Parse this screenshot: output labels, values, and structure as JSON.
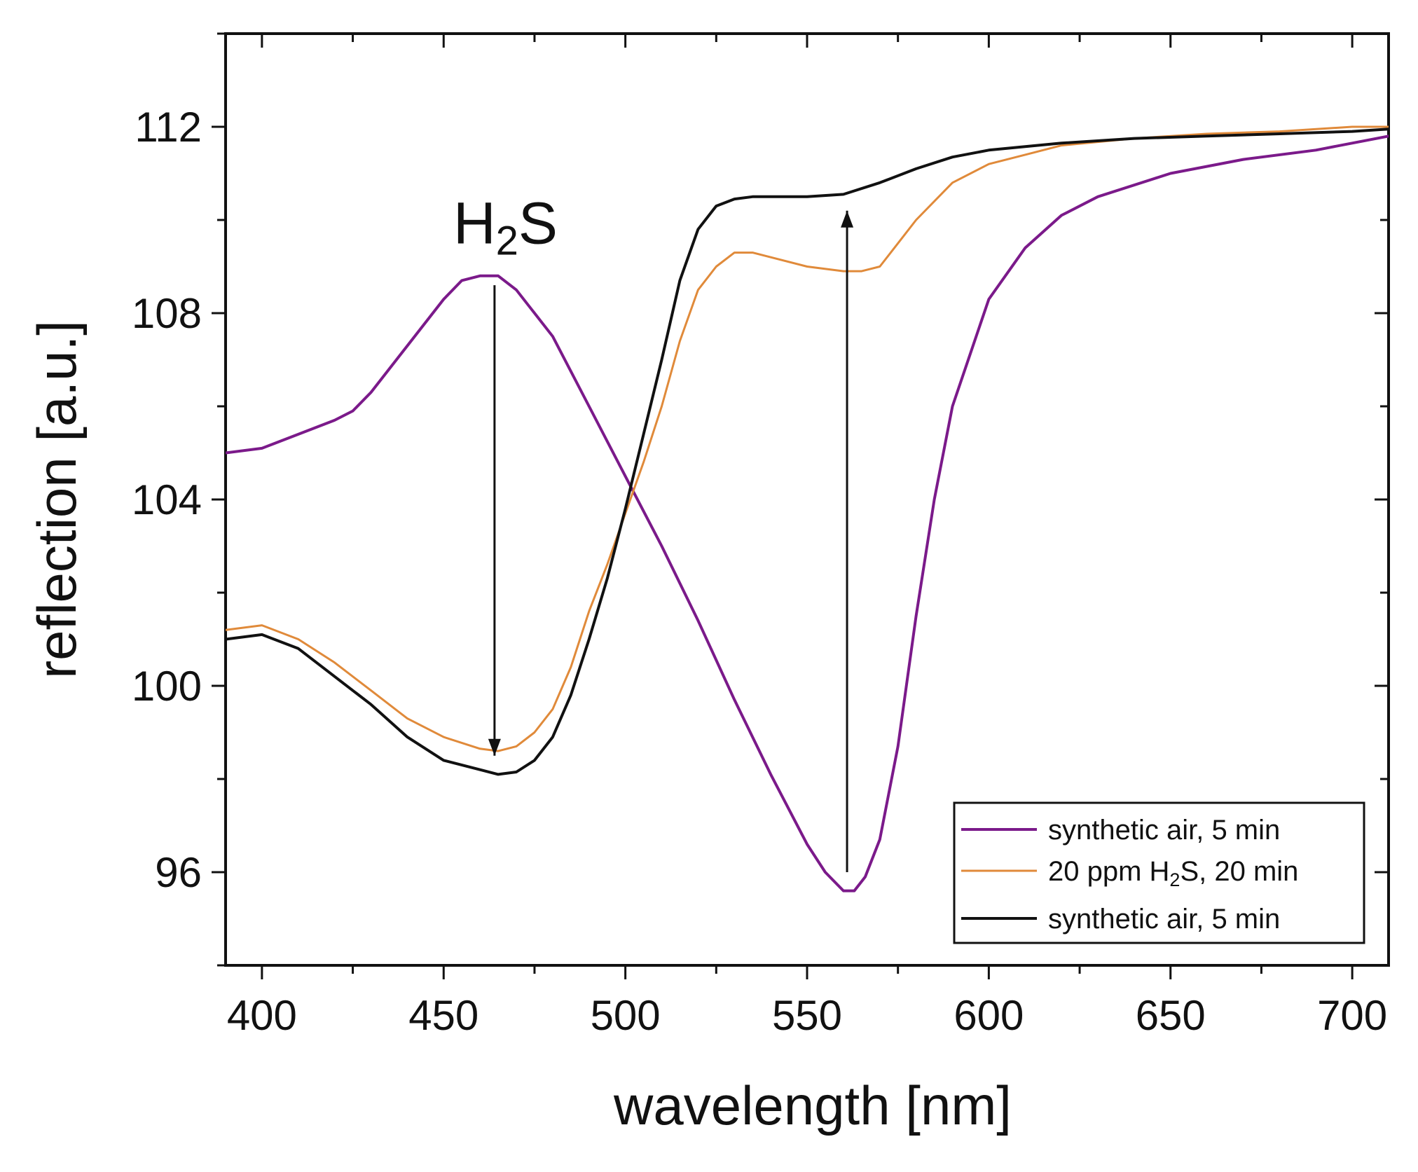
{
  "chart_data": {
    "type": "line",
    "title": "",
    "xlabel": "wavelength [nm]",
    "ylabel": "reflection [a.u.]",
    "xlim": [
      390,
      710
    ],
    "ylim": [
      94,
      114
    ],
    "x_ticks": [
      400,
      450,
      500,
      550,
      600,
      650,
      700
    ],
    "y_ticks": [
      96,
      100,
      104,
      108,
      112
    ],
    "x_minor_ticks": [
      425,
      475,
      525,
      575,
      625,
      675
    ],
    "y_minor_ticks": [
      94,
      98,
      102,
      106,
      110,
      114
    ],
    "grid": false,
    "legend_position": "bottom-right",
    "annotations": [
      {
        "text": "H",
        "sub": "2",
        "after": "S",
        "x": 467,
        "y": 109.5
      },
      {
        "type": "arrow",
        "direction": "down",
        "x": 464,
        "from": 108.6,
        "to": 98.5
      },
      {
        "type": "arrow",
        "direction": "up",
        "x": 561,
        "from": 96.0,
        "to": 110.2
      }
    ],
    "series": [
      {
        "name": "synthetic air, 5 min",
        "legend": {
          "text": "synthetic air, 5 min"
        },
        "color": "#7b1a8a",
        "x": [
          390,
          400,
          410,
          420,
          425,
          430,
          440,
          450,
          455,
          460,
          465,
          470,
          480,
          490,
          500,
          510,
          520,
          530,
          540,
          550,
          555,
          560,
          563,
          566,
          570,
          575,
          580,
          585,
          590,
          600,
          610,
          620,
          630,
          650,
          670,
          690,
          710
        ],
        "values": [
          105.0,
          105.1,
          105.4,
          105.7,
          105.9,
          106.3,
          107.3,
          108.3,
          108.7,
          108.8,
          108.8,
          108.5,
          107.5,
          106.0,
          104.5,
          103.0,
          101.4,
          99.7,
          98.1,
          96.6,
          96.0,
          95.6,
          95.6,
          95.9,
          96.7,
          98.7,
          101.5,
          104.0,
          106.0,
          108.3,
          109.4,
          110.1,
          110.5,
          111.0,
          111.3,
          111.5,
          111.8
        ]
      },
      {
        "name": "20 ppm H2S, 20 min",
        "legend": {
          "text": "20 ppm H",
          "sub": "2",
          "after": "S, 20 min"
        },
        "color": "#e08a3a",
        "x": [
          390,
          400,
          410,
          420,
          430,
          440,
          450,
          460,
          465,
          470,
          475,
          480,
          485,
          490,
          495,
          500,
          505,
          510,
          515,
          520,
          525,
          530,
          535,
          540,
          550,
          560,
          565,
          570,
          575,
          580,
          590,
          600,
          610,
          620,
          640,
          660,
          680,
          700,
          710
        ],
        "values": [
          101.2,
          101.3,
          101.0,
          100.5,
          99.9,
          99.3,
          98.9,
          98.65,
          98.6,
          98.7,
          99.0,
          99.5,
          100.4,
          101.6,
          102.6,
          103.7,
          104.8,
          106.0,
          107.4,
          108.5,
          109.0,
          109.3,
          109.3,
          109.2,
          109.0,
          108.9,
          108.9,
          109.0,
          109.5,
          110.0,
          110.8,
          111.2,
          111.4,
          111.6,
          111.75,
          111.85,
          111.9,
          112.0,
          112.0
        ]
      },
      {
        "name": "synthetic air, 5 min",
        "legend": {
          "text": "synthetic air, 5 min"
        },
        "color": "#111111",
        "x": [
          390,
          400,
          410,
          420,
          430,
          440,
          450,
          460,
          465,
          470,
          475,
          480,
          485,
          490,
          495,
          500,
          505,
          510,
          515,
          520,
          525,
          530,
          535,
          540,
          550,
          560,
          570,
          580,
          590,
          600,
          620,
          640,
          660,
          680,
          700,
          710
        ],
        "values": [
          101.0,
          101.1,
          100.8,
          100.2,
          99.6,
          98.9,
          98.4,
          98.2,
          98.1,
          98.15,
          98.4,
          98.9,
          99.8,
          101.0,
          102.3,
          103.8,
          105.4,
          107.0,
          108.7,
          109.8,
          110.3,
          110.45,
          110.5,
          110.5,
          110.5,
          110.55,
          110.8,
          111.1,
          111.35,
          111.5,
          111.65,
          111.75,
          111.8,
          111.85,
          111.9,
          111.95
        ]
      }
    ]
  }
}
